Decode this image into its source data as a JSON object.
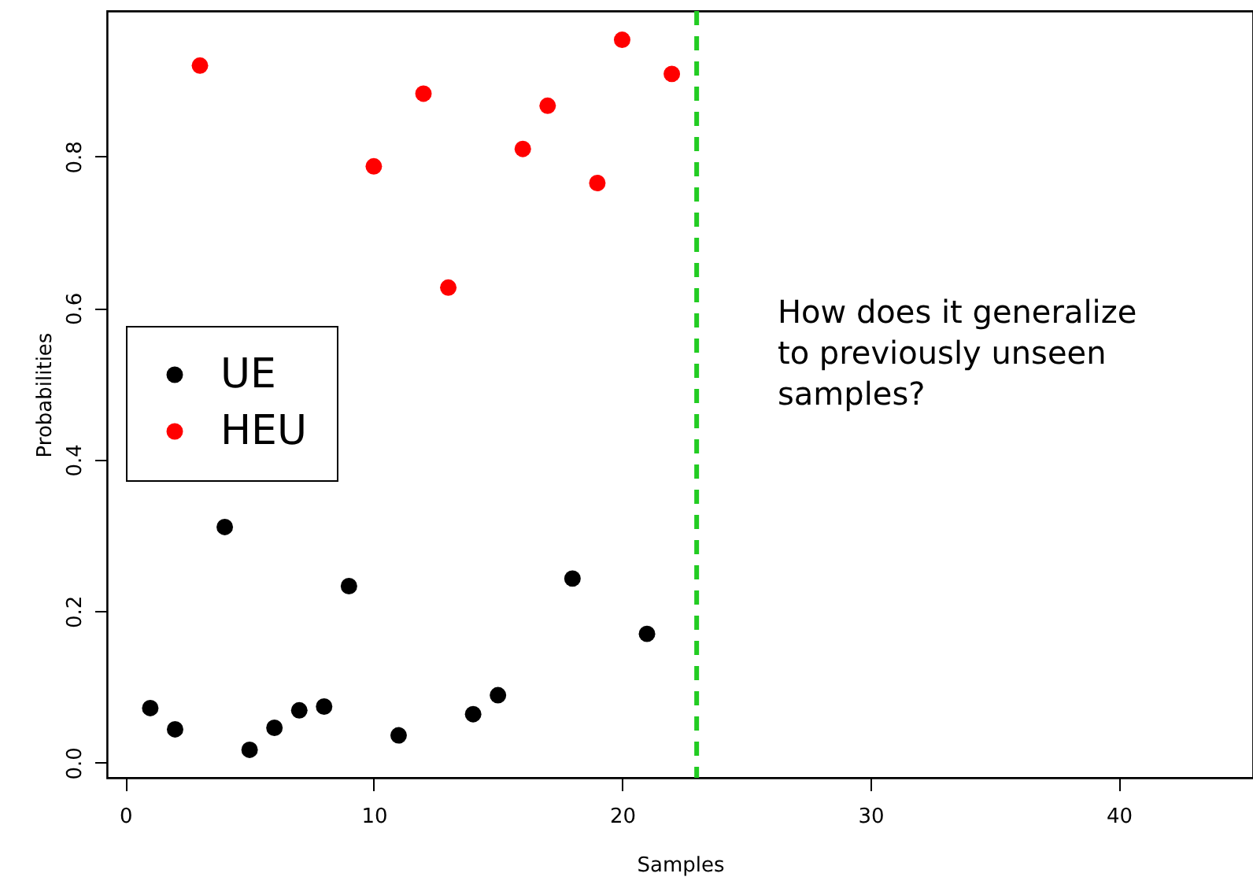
{
  "chart_data": {
    "type": "scatter",
    "xlabel": "Samples",
    "ylabel": "Probabilities",
    "xlim": [
      -0.74,
      45.4
    ],
    "xticks": [
      0,
      10,
      20,
      30,
      40
    ],
    "ylim": [
      -0.02,
      0.992
    ],
    "yticks": [
      {
        "value": 0,
        "label": "0.0"
      },
      {
        "value": 0.2,
        "label": "0.2"
      },
      {
        "value": 0.4,
        "label": "0.4"
      },
      {
        "value": 0.6,
        "label": "0.6"
      },
      {
        "value": 0.8,
        "label": "0.8"
      }
    ],
    "series": [
      {
        "name": "UE",
        "color": "#000000",
        "x": [
          1,
          2,
          4,
          5,
          6,
          7,
          8,
          9,
          11,
          14,
          15,
          18,
          21
        ],
        "values": [
          0.072,
          0.044,
          0.311,
          0.017,
          0.046,
          0.069,
          0.074,
          0.233,
          0.036,
          0.064,
          0.089,
          0.243,
          0.17
        ]
      },
      {
        "name": "HEU",
        "color": "#ff0000",
        "x": [
          3,
          10,
          12,
          13,
          16,
          17,
          19,
          20,
          22
        ],
        "values": [
          0.92,
          0.787,
          0.883,
          0.627,
          0.81,
          0.867,
          0.765,
          0.954,
          0.909
        ]
      }
    ],
    "ref_lines": [
      {
        "axis": "x",
        "value": 23,
        "color": "#22cc22",
        "line_style": "dashed"
      }
    ],
    "annotations": [
      "How does it generalize\nto previously unseen\nsamples?"
    ],
    "marker": "circle",
    "grid": false,
    "legend": "left"
  }
}
